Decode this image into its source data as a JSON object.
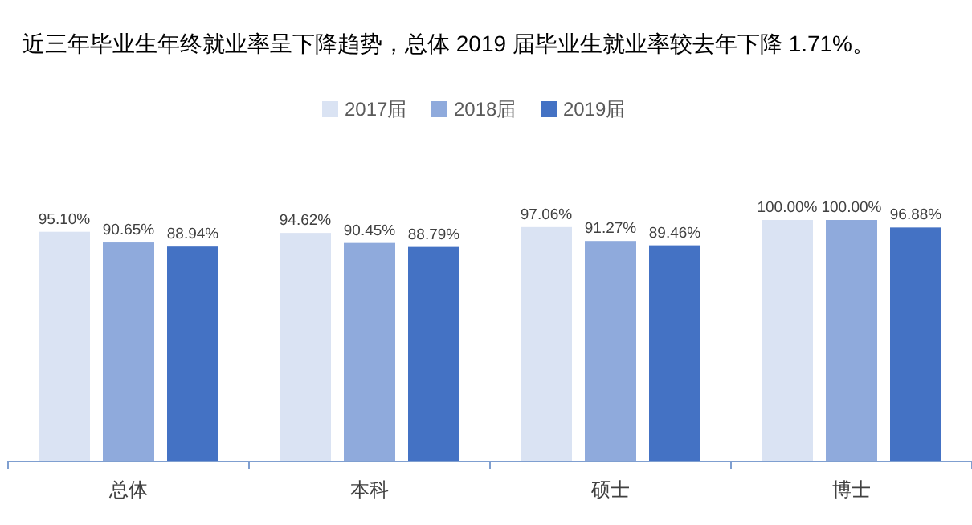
{
  "chart_data": {
    "type": "bar",
    "title": "近三年毕业生年终就业率呈下降趋势，总体 2019 届毕业生就业率较去年下降 1.71%。",
    "categories": [
      "总体",
      "本科",
      "硕士",
      "博士"
    ],
    "legend": "top",
    "series": [
      {
        "name": "2017届",
        "color": "#dae3f3",
        "values": [
          95.1,
          94.62,
          97.06,
          100.0
        ],
        "value_labels": [
          "95.10%",
          "94.62%",
          "97.06%",
          "100.00%"
        ]
      },
      {
        "name": "2018届",
        "color": "#8faadc",
        "values": [
          90.65,
          90.45,
          91.27,
          100.0
        ],
        "value_labels": [
          "90.65%",
          "90.45%",
          "91.27%",
          "100.00%"
        ]
      },
      {
        "name": "2019届",
        "color": "#4472c4",
        "values": [
          88.94,
          88.79,
          89.46,
          96.88
        ],
        "value_labels": [
          "88.94%",
          "88.79%",
          "89.46%",
          "96.88%"
        ]
      }
    ]
  }
}
